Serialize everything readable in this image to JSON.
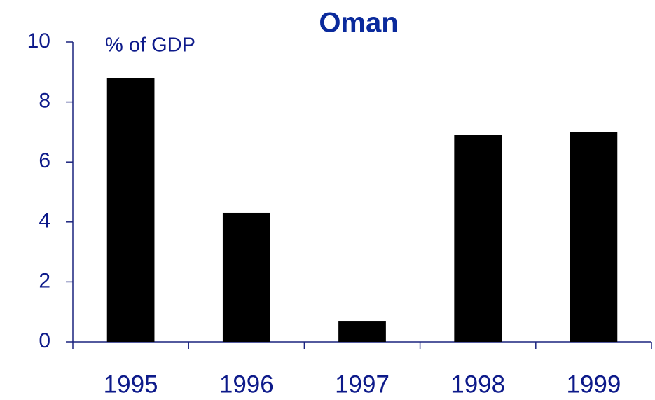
{
  "chart_data": {
    "type": "bar",
    "title": "Oman",
    "annotation": "% of GDP",
    "categories": [
      "1995",
      "1996",
      "1997",
      "1998",
      "1999"
    ],
    "values": [
      8.8,
      4.3,
      0.7,
      6.9,
      7.0
    ],
    "color": "#000000",
    "ylim": [
      0,
      10
    ],
    "yticks": [
      0,
      2,
      4,
      6,
      8,
      10
    ],
    "grid": false
  }
}
